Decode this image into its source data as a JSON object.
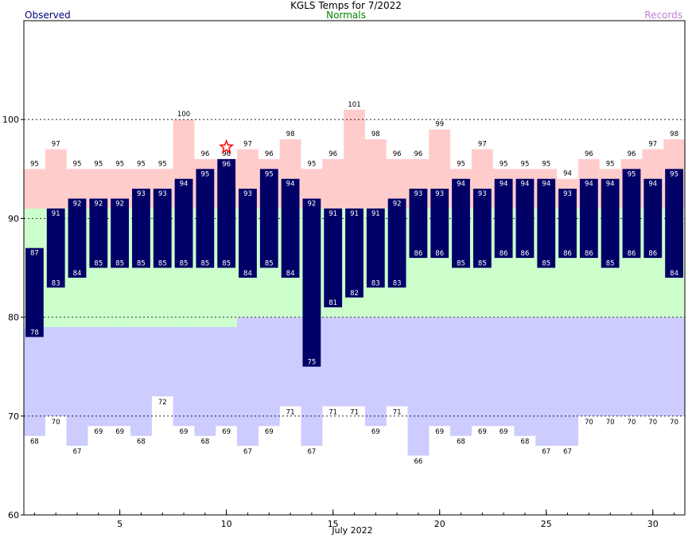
{
  "chart_data": {
    "type": "bar",
    "title": "KGLS Temps for 7/2022",
    "xlabel": "July 2022",
    "ylabel": "",
    "legend": [
      "Observed",
      "Normals",
      "Records"
    ],
    "ylim": [
      60,
      110
    ],
    "xlim": [
      0.5,
      31.5
    ],
    "yticks": [
      60,
      70,
      80,
      90,
      100
    ],
    "xticks": [
      5,
      10,
      15,
      20,
      25,
      30
    ],
    "grid": "dotted horizontal at 70, 80, 90, 100",
    "days": [
      1,
      2,
      3,
      4,
      5,
      6,
      7,
      8,
      9,
      10,
      11,
      12,
      13,
      14,
      15,
      16,
      17,
      18,
      19,
      20,
      21,
      22,
      23,
      24,
      25,
      26,
      27,
      28,
      29,
      30,
      31
    ],
    "observed_high": [
      87,
      91,
      92,
      92,
      92,
      93,
      93,
      94,
      95,
      96,
      93,
      95,
      94,
      92,
      91,
      91,
      91,
      92,
      93,
      93,
      94,
      93,
      94,
      94,
      94,
      93,
      94,
      94,
      95,
      94,
      95
    ],
    "observed_low": [
      78,
      83,
      84,
      85,
      85,
      85,
      85,
      85,
      85,
      85,
      84,
      85,
      84,
      75,
      81,
      82,
      83,
      83,
      86,
      86,
      85,
      85,
      86,
      86,
      85,
      86,
      86,
      85,
      86,
      86,
      84
    ],
    "normal_high": [
      91,
      91,
      91,
      91,
      91,
      91,
      91,
      91,
      91,
      91,
      91,
      91,
      91,
      91,
      91,
      91,
      91,
      91,
      91,
      91,
      91,
      91,
      91,
      91,
      91,
      91,
      91,
      91,
      91,
      91,
      91
    ],
    "normal_low": [
      79,
      79,
      79,
      79,
      79,
      79,
      79,
      79,
      79,
      79,
      80,
      80,
      80,
      80,
      80,
      80,
      80,
      80,
      80,
      80,
      80,
      80,
      80,
      80,
      80,
      80,
      80,
      80,
      80,
      80,
      80
    ],
    "record_high": [
      95,
      97,
      95,
      95,
      95,
      95,
      95,
      100,
      96,
      96,
      97,
      96,
      98,
      95,
      96,
      101,
      98,
      96,
      96,
      99,
      95,
      97,
      95,
      95,
      95,
      94,
      96,
      95,
      96,
      97,
      98
    ],
    "record_low": [
      68,
      70,
      67,
      69,
      69,
      68,
      72,
      69,
      68,
      69,
      67,
      69,
      71,
      67,
      71,
      71,
      69,
      71,
      66,
      69,
      68,
      69,
      69,
      68,
      67,
      67,
      70,
      70,
      70,
      70,
      70
    ],
    "record_set_day": 10
  }
}
